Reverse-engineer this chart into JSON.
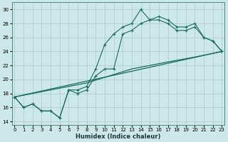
{
  "xlabel": "Humidex (Indice chaleur)",
  "bg_color": "#cde8e8",
  "grid_color": "#aecece",
  "line_color": "#1a6b5a",
  "x_ticks": [
    0,
    1,
    2,
    3,
    4,
    5,
    6,
    7,
    8,
    9,
    10,
    11,
    12,
    13,
    14,
    15,
    16,
    17,
    18,
    19,
    20,
    21,
    22,
    23
  ],
  "y_ticks": [
    14,
    16,
    18,
    20,
    22,
    24,
    26,
    28,
    30
  ],
  "xlim": [
    -0.3,
    23.3
  ],
  "ylim": [
    13.5,
    31.0
  ],
  "line_a": {
    "x": [
      0,
      1,
      2,
      3,
      4,
      5,
      6,
      7,
      8,
      9,
      10,
      11,
      12,
      13,
      14,
      15,
      16,
      17,
      18,
      19,
      20,
      21,
      22,
      23
    ],
    "y": [
      17.5,
      16.0,
      16.5,
      15.5,
      15.5,
      14.5,
      18.5,
      18.5,
      19.0,
      21.5,
      25.0,
      26.5,
      27.5,
      28.0,
      30.0,
      28.5,
      29.0,
      28.5,
      27.5,
      27.5,
      28.0,
      26.0,
      25.5,
      24.0
    ]
  },
  "line_b": {
    "x": [
      0,
      1,
      2,
      3,
      4,
      5,
      6,
      7,
      8,
      9,
      10,
      11,
      12,
      13,
      14,
      15,
      16,
      17,
      18,
      19,
      20,
      21,
      22,
      23
    ],
    "y": [
      17.5,
      16.0,
      16.5,
      15.5,
      15.5,
      14.5,
      18.5,
      18.0,
      18.5,
      20.5,
      21.5,
      21.5,
      26.5,
      27.0,
      28.0,
      28.5,
      28.5,
      28.0,
      27.0,
      27.0,
      27.5,
      26.0,
      25.5,
      24.0
    ]
  },
  "diag1": {
    "x": [
      0,
      23
    ],
    "y": [
      17.5,
      24.0
    ]
  },
  "diag2": {
    "x": [
      0,
      8,
      13,
      17,
      20,
      23
    ],
    "y": [
      17.5,
      19.5,
      21.5,
      22.5,
      23.2,
      24.0
    ]
  }
}
